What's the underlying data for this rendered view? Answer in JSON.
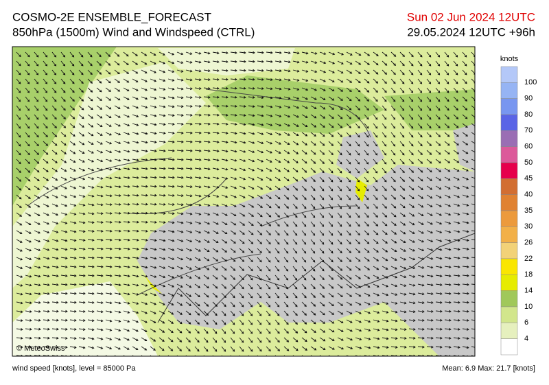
{
  "header": {
    "title": "COSMO-2E ENSEMBLE_FORECAST",
    "subtitle": "850hPa (1500m) Wind and Windspeed (CTRL)",
    "valid_time": "Sun 02 Jun 2024 12UTC",
    "run_time": "29.05.2024 12UTC +96h"
  },
  "map": {
    "copyright": "© MeteoSwiss"
  },
  "colorbar": {
    "unit": "knots",
    "labels": [
      "100",
      "90",
      "80",
      "70",
      "60",
      "50",
      "45",
      "40",
      "35",
      "30",
      "26",
      "22",
      "18",
      "14",
      "10",
      "6",
      "4"
    ],
    "colors": [
      "#b4c8f8",
      "#96b4f4",
      "#7896f0",
      "#5a64e6",
      "#9a6eb4",
      "#dc5a9a",
      "#e6004c",
      "#d26e32",
      "#e08232",
      "#ec9a3c",
      "#f2b048",
      "#f2d278",
      "#fae600",
      "#e6ec00",
      "#a0c85a",
      "#d2e68c",
      "#e6f0be",
      "#ffffff"
    ]
  },
  "footer": {
    "level": "wind speed [knots], level = 85000 Pa",
    "stats": "Mean:   6.9 Max:   21.7 [knots]"
  }
}
